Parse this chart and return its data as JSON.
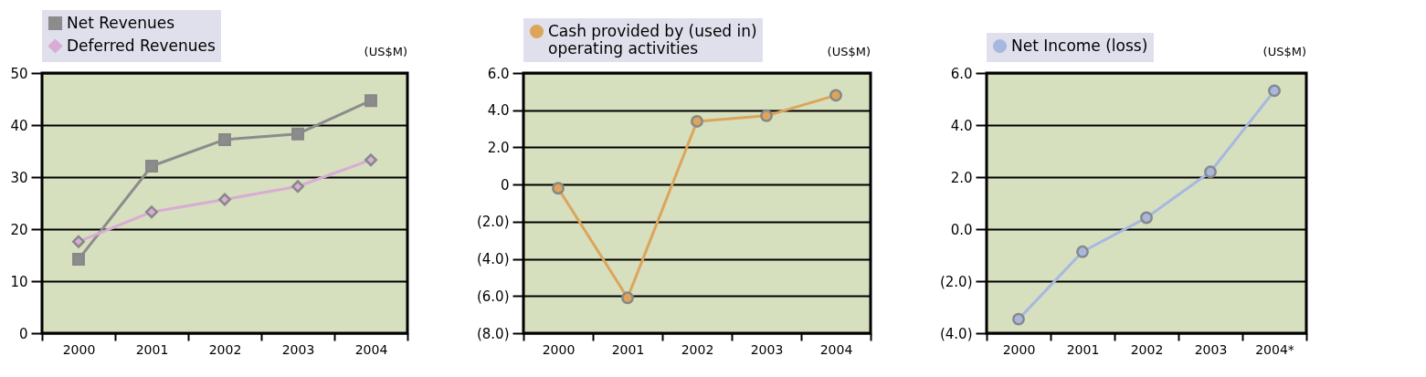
{
  "chart_data": [
    {
      "type": "line",
      "categories": [
        "2000",
        "2001",
        "2002",
        "2003",
        "2004"
      ],
      "series": [
        {
          "name": "Net Revenues",
          "color": "#8c8c8c",
          "marker": "square",
          "values": [
            14.2,
            32.1,
            37.2,
            38.3,
            44.7
          ]
        },
        {
          "name": "Deferred Revenues",
          "color": "#d8acd4",
          "marker": "diamond",
          "values": [
            17.6,
            23.3,
            25.7,
            28.2,
            33.3
          ]
        }
      ],
      "ylim": [
        0,
        50
      ],
      "yticks": [
        0,
        10,
        20,
        30,
        40,
        50
      ],
      "grid": "y",
      "legend": "top",
      "annotations": [
        "(US$M)"
      ]
    },
    {
      "type": "line",
      "categories": [
        "2000",
        "2001",
        "2002",
        "2003",
        "2004"
      ],
      "series": [
        {
          "name": "Cash provided by (used in) operating activities",
          "color": "#dca55a",
          "marker": "circle",
          "values": [
            -0.2,
            -6.1,
            3.4,
            3.7,
            4.8
          ]
        }
      ],
      "ylim": [
        -8,
        6
      ],
      "yticks": [
        {
          "value": -8,
          "label": "(8.0)"
        },
        {
          "value": -6,
          "label": "(6.0)"
        },
        {
          "value": -4,
          "label": "(4.0)"
        },
        {
          "value": -2,
          "label": "(2.0)"
        },
        0,
        {
          "value": 2,
          "label": "2.0"
        },
        {
          "value": 4,
          "label": "4.0"
        },
        {
          "value": 6,
          "label": "6.0"
        }
      ],
      "grid": "y",
      "legend": "top",
      "annotations": [
        "(US$M)"
      ]
    },
    {
      "type": "line",
      "categories": [
        "2000",
        "2001",
        "2002",
        "2003",
        "2004*"
      ],
      "series": [
        {
          "name": "Net Income (loss)",
          "color": "#a7b8e0",
          "marker": "circle",
          "values": [
            -3.46,
            -0.87,
            0.44,
            2.2,
            5.32
          ]
        }
      ],
      "ylim": [
        -4,
        6
      ],
      "yticks": [
        {
          "value": -4,
          "label": "(4.0)"
        },
        {
          "value": -2,
          "label": "(2.0)"
        },
        {
          "value": 0,
          "label": "0.0"
        },
        {
          "value": 2,
          "label": "2.0"
        },
        {
          "value": 4,
          "label": "4.0"
        },
        {
          "value": 6,
          "label": "6.0"
        }
      ],
      "grid": "y",
      "legend": "top",
      "annotations": [
        "(US$M)"
      ]
    }
  ]
}
